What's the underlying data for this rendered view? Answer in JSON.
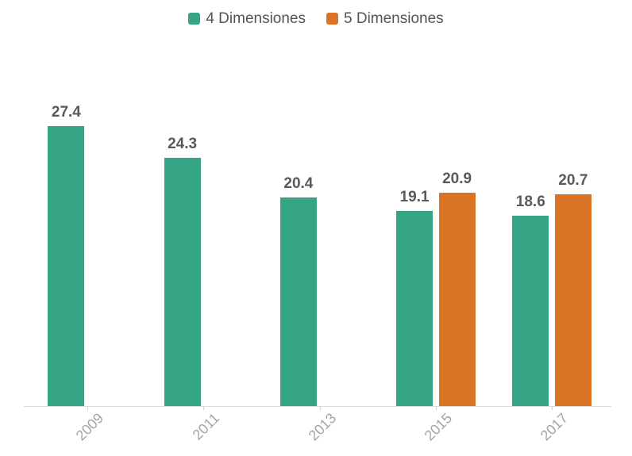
{
  "chart_data": {
    "type": "bar",
    "title": "",
    "xlabel": "",
    "ylabel": "",
    "categories": [
      "2009",
      "2011",
      "2013",
      "2015",
      "2017"
    ],
    "series": [
      {
        "name": "4 Dimensiones",
        "color": "#36A586",
        "values": [
          27.4,
          24.3,
          20.4,
          19.1,
          18.6
        ]
      },
      {
        "name": "5 Dimensiones",
        "color": "#D97326",
        "values": [
          null,
          null,
          null,
          20.9,
          20.7
        ]
      }
    ],
    "ylim": [
      0,
      30
    ],
    "grid": false,
    "y_axis_visible": false,
    "legend_position": "top",
    "data_labels": true,
    "colors": {
      "axis_line": "#DBDBDB",
      "tick": "#D4D4D4",
      "data_label": "#595959",
      "axis_label": "#A5A5A5",
      "legend_text": "#545454",
      "background": "#FFFFFF"
    }
  }
}
